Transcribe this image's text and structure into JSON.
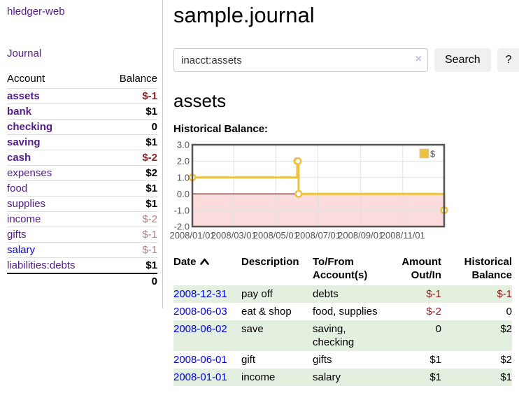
{
  "brand": "hledger-web",
  "nav": {
    "journal": "Journal"
  },
  "accounts_panel": {
    "headers": {
      "account": "Account",
      "balance": "Balance"
    },
    "rows": [
      {
        "name": "assets",
        "balance": "$-1"
      },
      {
        "name": "bank",
        "balance": "$1"
      },
      {
        "name": "checking",
        "balance": "0"
      },
      {
        "name": "saving",
        "balance": "$1"
      },
      {
        "name": "cash",
        "balance": "$-2"
      },
      {
        "name": "expenses",
        "balance": "$2"
      },
      {
        "name": "food",
        "balance": "$1"
      },
      {
        "name": "supplies",
        "balance": "$1"
      },
      {
        "name": "income",
        "balance": "$-2"
      },
      {
        "name": "gifts",
        "balance": "$-1"
      },
      {
        "name": "salary",
        "balance": "$-1"
      },
      {
        "name": "liabilities:debts",
        "balance": "$1"
      }
    ],
    "total": "0"
  },
  "header": {
    "title": "sample.journal"
  },
  "search": {
    "value": "inacct:assets",
    "clear": "×",
    "submit": "Search",
    "help": "?"
  },
  "account_page": {
    "heading": "assets",
    "chart_title": "Historical Balance:"
  },
  "chart_data": {
    "type": "line",
    "step": true,
    "title": "Historical Balance",
    "series": [
      {
        "name": "$",
        "color": "#edc240",
        "points": [
          {
            "date": "2008-01-01",
            "value": 1
          },
          {
            "date": "2008-06-01",
            "value": 2
          },
          {
            "date": "2008-06-02",
            "value": 2
          },
          {
            "date": "2008-06-03",
            "value": 0
          },
          {
            "date": "2008-12-31",
            "value": -1
          }
        ]
      }
    ],
    "xrange": [
      "2008-01-01",
      "2008-12-31"
    ],
    "ylim": [
      -2,
      3
    ],
    "yticks": [
      "3.0",
      "2.0",
      "1.0",
      "0.0",
      "-1.0",
      "-2.0"
    ],
    "xticks": [
      "2008/01/01",
      "2008/03/01",
      "2008/05/01",
      "2008/07/01",
      "2008/09/01",
      "2008/11/01"
    ],
    "legend": {
      "label": "$",
      "position": "top-right"
    },
    "grid": true,
    "zero_line_color": "#8b0000",
    "negative_region_fill": "#fbdcdc"
  },
  "register": {
    "headers": {
      "date": "Date",
      "description": "Description",
      "account": "To/From Account(s)",
      "amount": "Amount Out/In",
      "balance": "Historical Balance"
    },
    "rows": [
      {
        "date": "2008-12-31",
        "description": "pay off",
        "accounts": "debts",
        "amount": "$-1",
        "balance": "$-1"
      },
      {
        "date": "2008-06-03",
        "description": "eat & shop",
        "accounts": "food, supplies",
        "amount": "$-2",
        "balance": "0"
      },
      {
        "date": "2008-06-02",
        "description": "save",
        "accounts": "saving, checking",
        "amount": "0",
        "balance": "$2"
      },
      {
        "date": "2008-06-01",
        "description": "gift",
        "accounts": "gifts",
        "amount": "$1",
        "balance": "$2"
      },
      {
        "date": "2008-01-01",
        "description": "income",
        "accounts": "salary",
        "amount": "$1",
        "balance": "$1"
      }
    ]
  }
}
